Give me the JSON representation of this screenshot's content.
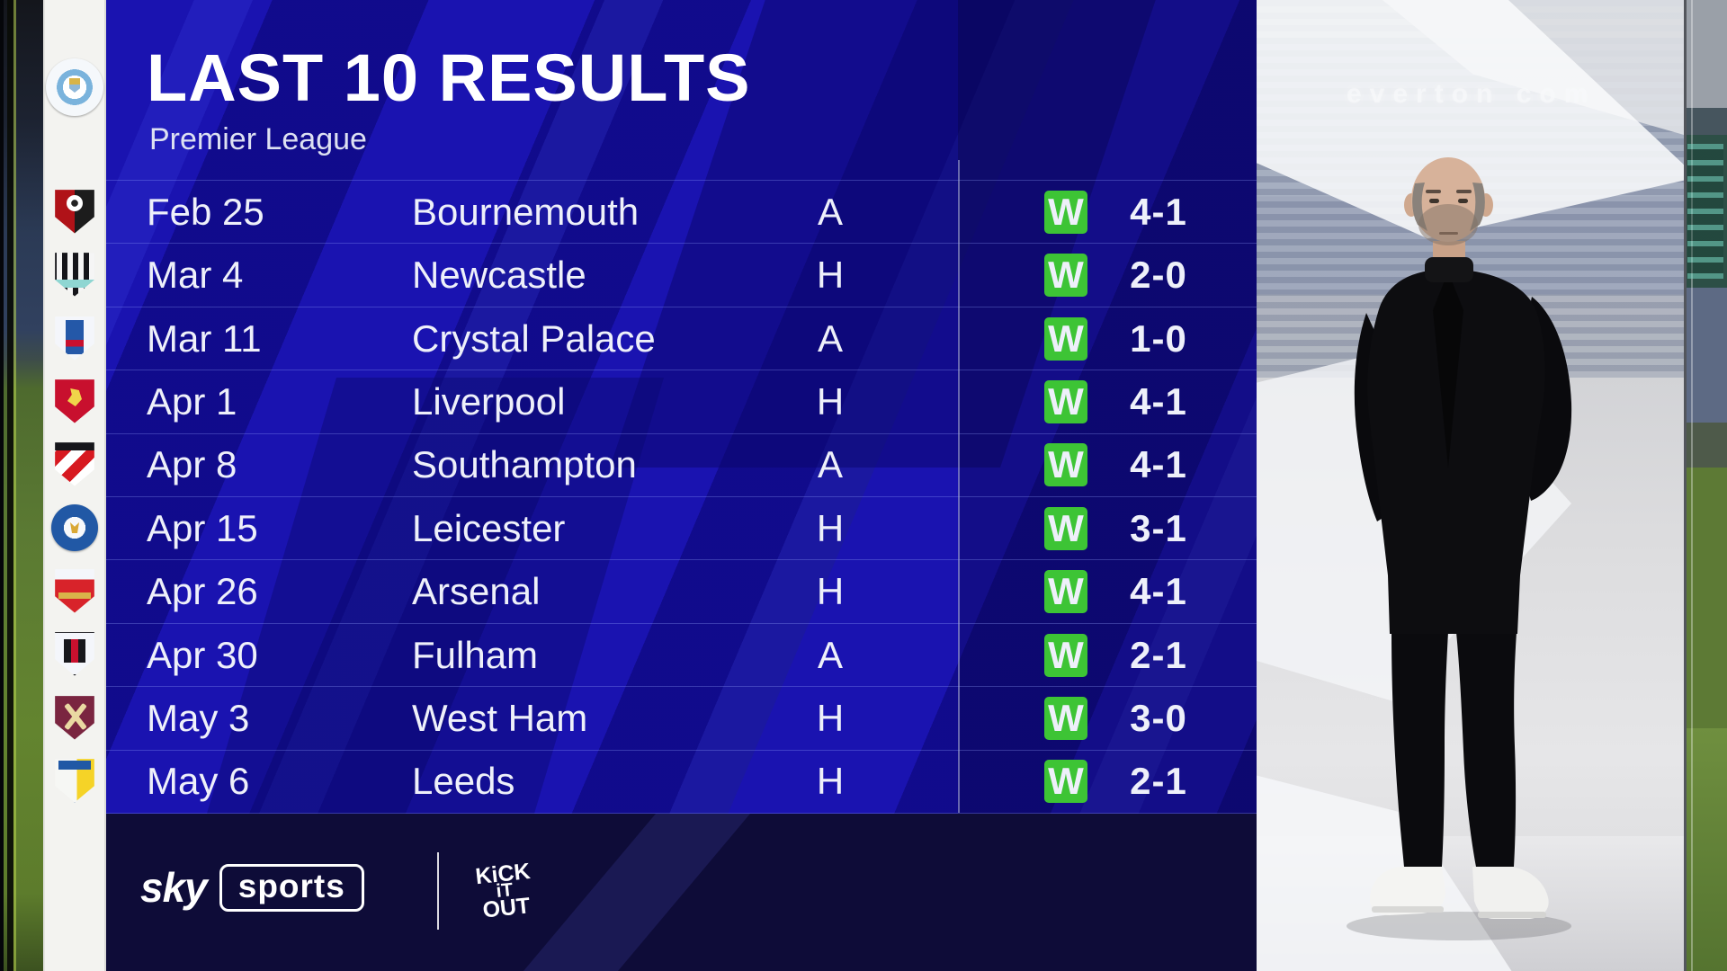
{
  "header": {
    "title": "LAST 10 RESULTS",
    "subtitle": "Premier League"
  },
  "team": {
    "badge": "manchester-city"
  },
  "table": {
    "rows": [
      {
        "date": "Feb 25",
        "opponent": "Bournemouth",
        "venue": "A",
        "result": "W",
        "score": "4-1",
        "badge": "bournemouth"
      },
      {
        "date": "Mar 4",
        "opponent": "Newcastle",
        "venue": "H",
        "result": "W",
        "score": "2-0",
        "badge": "newcastle"
      },
      {
        "date": "Mar 11",
        "opponent": "Crystal Palace",
        "venue": "A",
        "result": "W",
        "score": "1-0",
        "badge": "crystal-palace"
      },
      {
        "date": "Apr 1",
        "opponent": "Liverpool",
        "venue": "H",
        "result": "W",
        "score": "4-1",
        "badge": "liverpool"
      },
      {
        "date": "Apr 8",
        "opponent": "Southampton",
        "venue": "A",
        "result": "W",
        "score": "4-1",
        "badge": "southampton"
      },
      {
        "date": "Apr 15",
        "opponent": "Leicester",
        "venue": "H",
        "result": "W",
        "score": "3-1",
        "badge": "leicester"
      },
      {
        "date": "Apr 26",
        "opponent": "Arsenal",
        "venue": "H",
        "result": "W",
        "score": "4-1",
        "badge": "arsenal"
      },
      {
        "date": "Apr 30",
        "opponent": "Fulham",
        "venue": "A",
        "result": "W",
        "score": "2-1",
        "badge": "fulham"
      },
      {
        "date": "May 3",
        "opponent": "West Ham",
        "venue": "H",
        "result": "W",
        "score": "3-0",
        "badge": "west-ham"
      },
      {
        "date": "May 6",
        "opponent": "Leeds",
        "venue": "H",
        "result": "W",
        "score": "2-1",
        "badge": "leeds"
      }
    ]
  },
  "footer": {
    "sky_label": "sky",
    "sports_label": "sports",
    "kio_lines": {
      "0": "KiCK",
      "1": "iT",
      "2": "OUT"
    }
  },
  "photo": {
    "sign_text": "everton com"
  },
  "colors": {
    "win_badge": "#3dc435",
    "panel_blue": "#1a13b0",
    "navy_band": "#0e0c38"
  }
}
